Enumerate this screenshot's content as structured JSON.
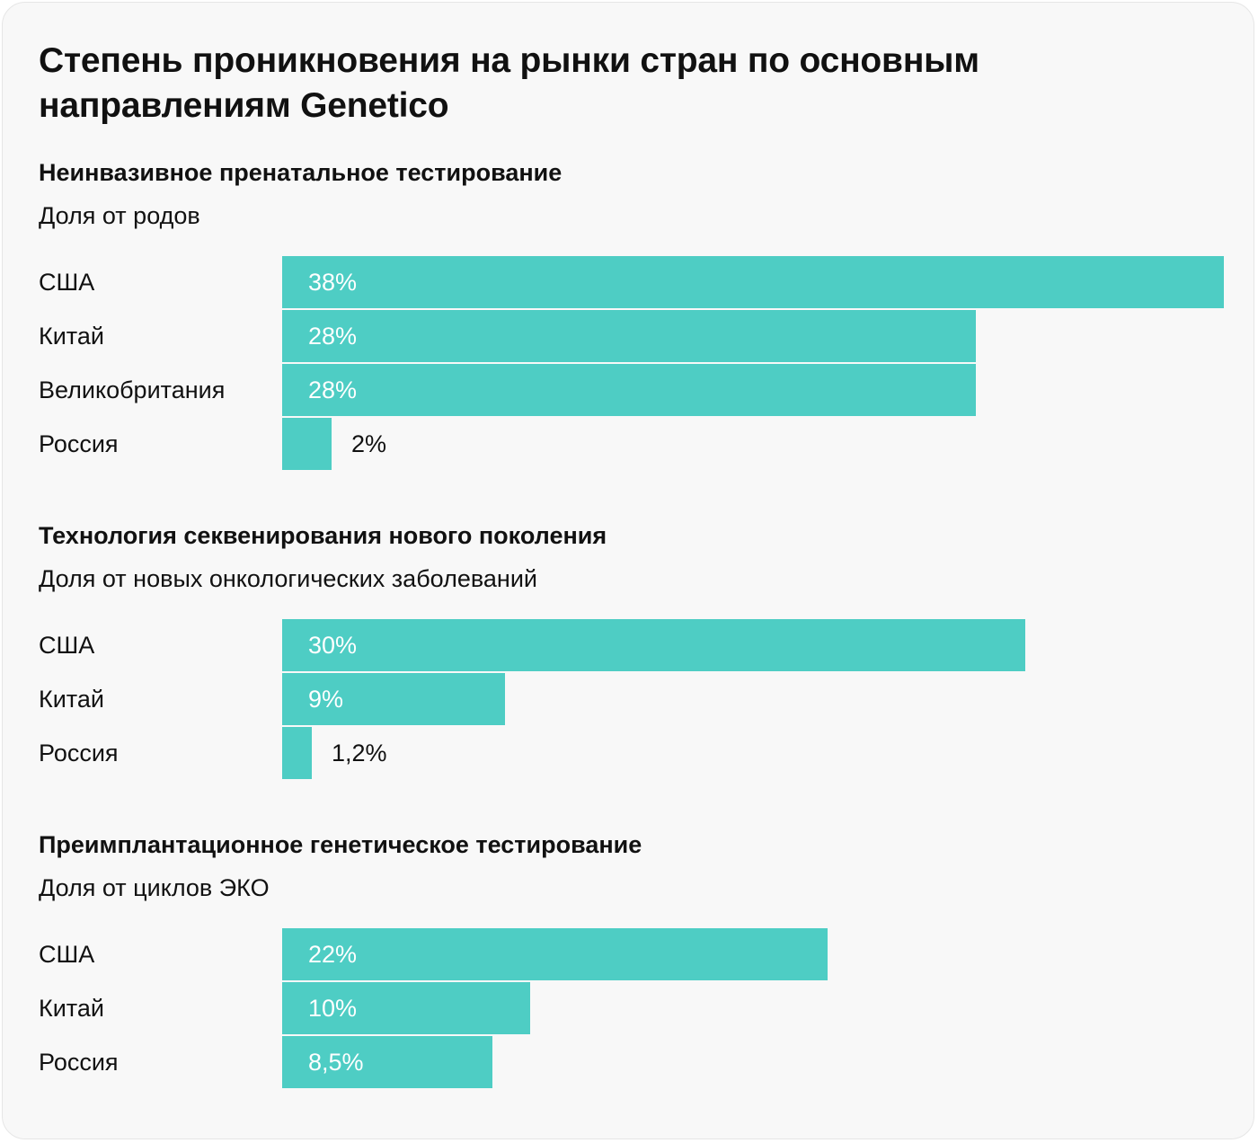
{
  "title": "Степень проникновения на рынки стран по основным направлениям Genetico",
  "colors": {
    "bar": "#4ecdc4",
    "card_background": "#f8f8f8",
    "text": "#111111",
    "value_inside": "#ffffff"
  },
  "chart_data": [
    {
      "type": "bar",
      "orientation": "horizontal",
      "title": "Неинвазивное пренатальное тестирование",
      "subtitle": "Доля от родов",
      "categories": [
        "США",
        "Китай",
        "Великобритания",
        "Россия"
      ],
      "values": [
        38,
        28,
        28,
        2
      ],
      "value_labels": [
        "38%",
        "28%",
        "28%",
        "2%"
      ],
      "unit": "%",
      "xlim": [
        0,
        38
      ],
      "grid": false,
      "legend": "none"
    },
    {
      "type": "bar",
      "orientation": "horizontal",
      "title": "Технология секвенирования нового поколения",
      "subtitle": "Доля от новых онкологических заболеваний",
      "categories": [
        "США",
        "Китай",
        "Россия"
      ],
      "values": [
        30,
        9,
        1.2
      ],
      "value_labels": [
        "30%",
        "9%",
        "1,2%"
      ],
      "unit": "%",
      "xlim": [
        0,
        38
      ],
      "grid": false,
      "legend": "none"
    },
    {
      "type": "bar",
      "orientation": "horizontal",
      "title": "Преимплантационное генетическое тестирование",
      "subtitle": "Доля от циклов ЭКО",
      "categories": [
        "США",
        "Китай",
        "Россия"
      ],
      "values": [
        22,
        10,
        8.5
      ],
      "value_labels": [
        "22%",
        "10%",
        "8,5%"
      ],
      "unit": "%",
      "xlim": [
        0,
        38
      ],
      "grid": false,
      "legend": "none"
    }
  ]
}
